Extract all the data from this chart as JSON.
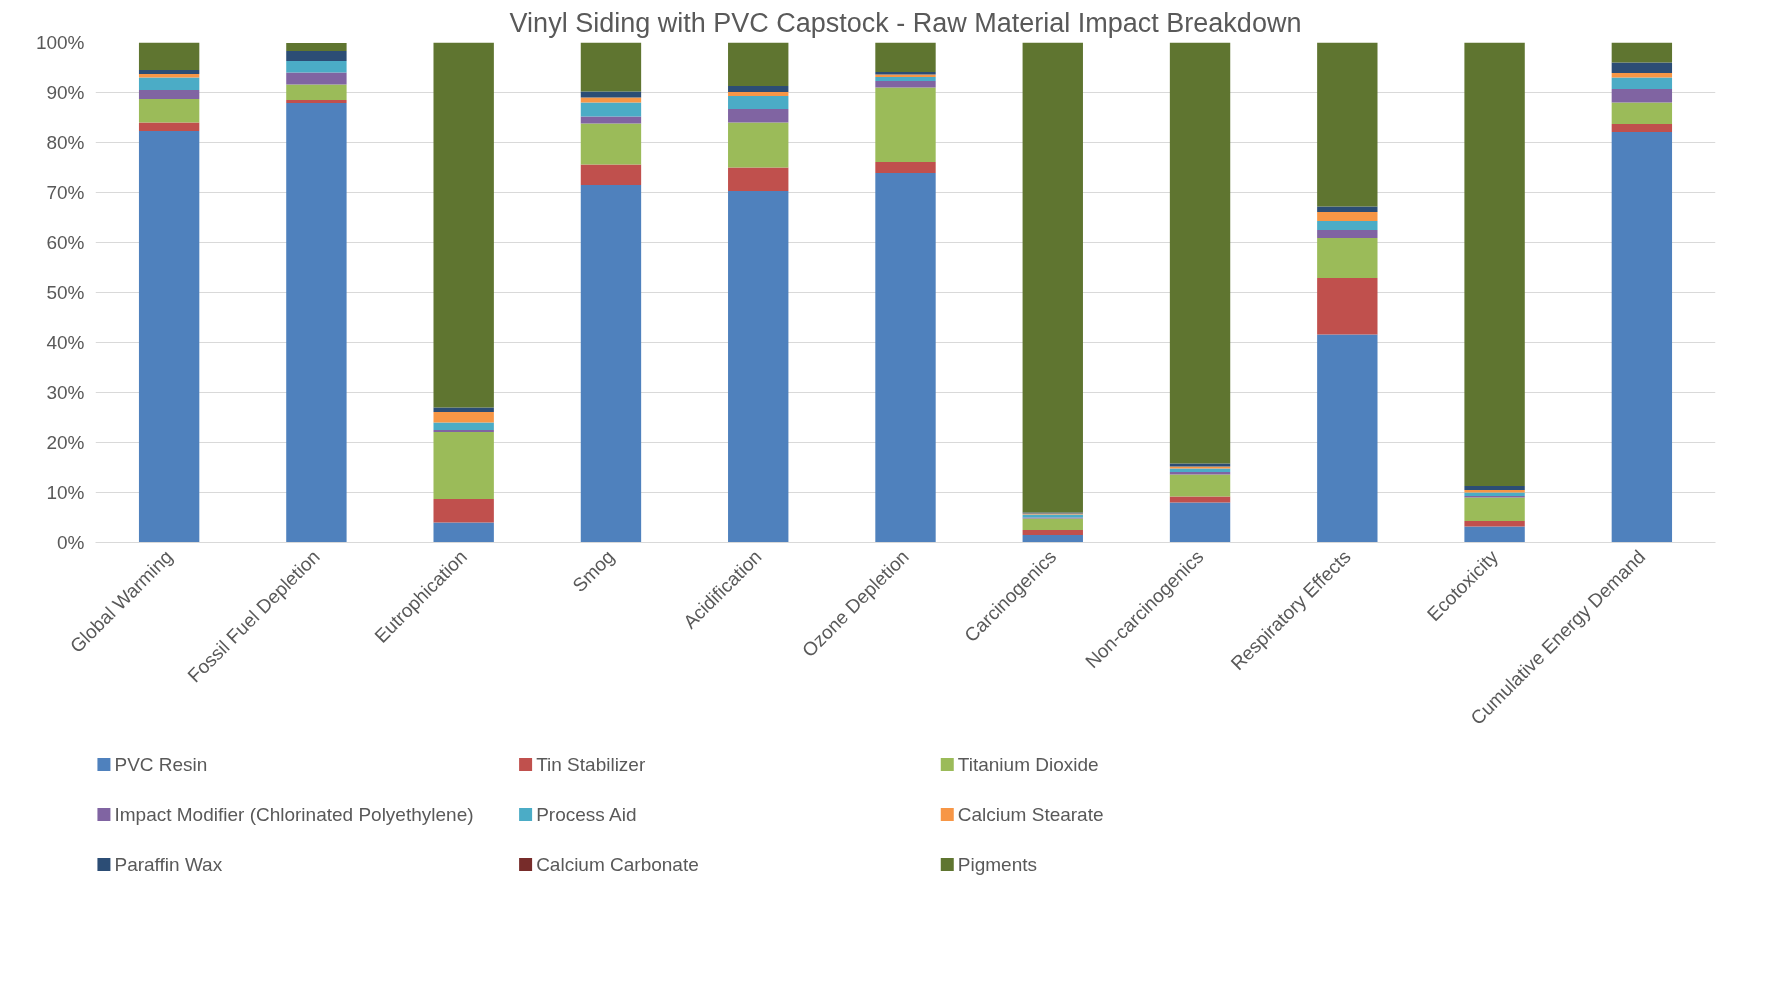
{
  "chart_data": {
    "type": "bar",
    "stacked": true,
    "title": "Vinyl Siding with PVC Capstock - Raw Material Impact Breakdown",
    "categories": [
      "Global Warming",
      "Fossil Fuel Depletion",
      "Eutrophication",
      "Smog",
      "Acidification",
      "Ozone Depletion",
      "Carcinogenics",
      "Non-carcinogenics",
      "Respiratory Effects",
      "Ecotoxicity",
      "Cumulative Energy Demand"
    ],
    "series": [
      {
        "name": "PVC Resin",
        "color": "#4f81bd",
        "values": [
          82.3,
          87.9,
          4.0,
          71.5,
          70.3,
          73.9,
          1.5,
          8.0,
          41.6,
          3.2,
          82.1
        ]
      },
      {
        "name": "Tin Stabilizer",
        "color": "#c0504d",
        "values": [
          1.7,
          0.6,
          4.7,
          4.1,
          4.7,
          2.2,
          1.0,
          1.2,
          11.3,
          1.1,
          1.6
        ]
      },
      {
        "name": "Titanium Dioxide",
        "color": "#9bbb59",
        "values": [
          4.7,
          3.1,
          13.4,
          8.2,
          9.0,
          14.9,
          2.3,
          4.4,
          8.0,
          4.7,
          4.3
        ]
      },
      {
        "name": "Impact Modifier (Chlorinated Polyethylene)",
        "color": "#8064a2",
        "values": [
          1.8,
          2.4,
          0.4,
          1.4,
          2.7,
          1.3,
          0.2,
          0.5,
          1.6,
          0.3,
          2.7
        ]
      },
      {
        "name": "Process Aid",
        "color": "#4bacc6",
        "values": [
          2.5,
          2.3,
          1.5,
          2.8,
          2.6,
          0.8,
          0.6,
          0.7,
          1.8,
          0.7,
          2.3
        ]
      },
      {
        "name": "Calcium Stearate",
        "color": "#f79646",
        "values": [
          0.7,
          null,
          2.1,
          1.0,
          0.8,
          0.5,
          0.2,
          0.4,
          1.8,
          0.5,
          0.9
        ]
      },
      {
        "name": "Paraffin Wax",
        "color": "#2c4d75",
        "values": [
          0.8,
          2.0,
          0.9,
          1.2,
          1.2,
          0.5,
          0.2,
          0.6,
          1.1,
          0.8,
          2.1
        ]
      },
      {
        "name": "Calcium Carbonate",
        "color": "#772c2a",
        "values": [
          0,
          0,
          0,
          0,
          0,
          0,
          0,
          0,
          0,
          0,
          0
        ]
      },
      {
        "name": "Pigments",
        "color": "#5f7530",
        "values": [
          5.5,
          1.6,
          73.0,
          9.8,
          8.7,
          5.9,
          94.0,
          84.2,
          32.8,
          88.7,
          4.0
        ]
      }
    ],
    "ylim": [
      0,
      100
    ],
    "yticks": [
      {
        "value": 0,
        "label": "0%"
      },
      {
        "value": 10,
        "label": "10%"
      },
      {
        "value": 20,
        "label": "20%"
      },
      {
        "value": 30,
        "label": "30%"
      },
      {
        "value": 40,
        "label": "40%"
      },
      {
        "value": 50,
        "label": "50%"
      },
      {
        "value": 60,
        "label": "60%"
      },
      {
        "value": 70,
        "label": "70%"
      },
      {
        "value": 80,
        "label": "80%"
      },
      {
        "value": 90,
        "label": "90%"
      },
      {
        "value": 100,
        "label": "100%"
      }
    ],
    "grid": "y",
    "legend": "bottom"
  }
}
